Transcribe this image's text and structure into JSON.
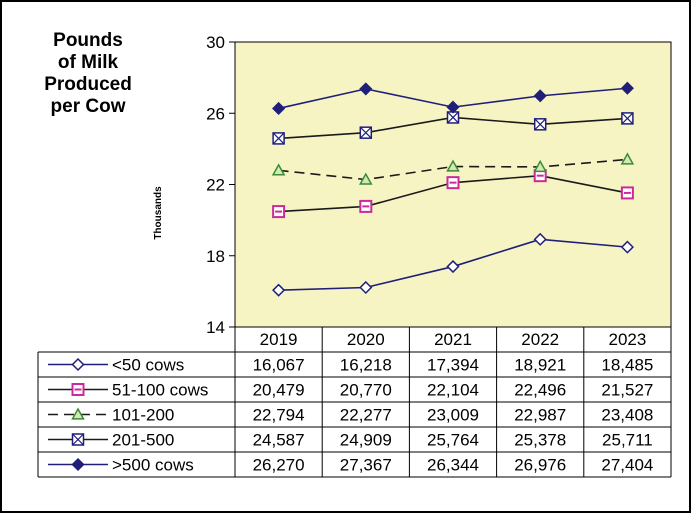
{
  "chart_data": {
    "type": "line",
    "title_lines": [
      "Pounds",
      "of Milk",
      "Produced",
      "per Cow"
    ],
    "ylabel": "Thousands",
    "ylim": [
      14,
      30
    ],
    "yticks": [
      14,
      18,
      22,
      26,
      30
    ],
    "categories": [
      "2019",
      "2020",
      "2021",
      "2022",
      "2023"
    ],
    "plot_background": "#f7f4c4",
    "series": [
      {
        "name": "<50 cows",
        "marker": "diamond-open",
        "dash": false,
        "color": "#1f1f7a",
        "marker_color": "#1f1f7a",
        "values": [
          16.067,
          16.218,
          17.394,
          18.921,
          18.485
        ],
        "labels": [
          "16,067",
          "16,218",
          "17,394",
          "18,921",
          "18,485"
        ]
      },
      {
        "name": "51-100 cows",
        "marker": "square-pink",
        "dash": false,
        "color": "#1a1a1a",
        "marker_color": "#cc2a9a",
        "values": [
          20.479,
          20.77,
          22.104,
          22.496,
          21.527
        ],
        "labels": [
          "20,479",
          "20,770",
          "22,104",
          "22,496",
          "21,527"
        ]
      },
      {
        "name": "101-200",
        "marker": "triangle-green",
        "dash": true,
        "color": "#1a1a1a",
        "marker_color": "#3a8a3a",
        "values": [
          22.794,
          22.277,
          23.009,
          22.987,
          23.408
        ],
        "labels": [
          "22,794",
          "22,277",
          "23,009",
          "22,987",
          "23,408"
        ]
      },
      {
        "name": "201-500",
        "marker": "square-x",
        "dash": false,
        "color": "#1a1a1a",
        "marker_color": "#1f1f7a",
        "values": [
          24.587,
          24.909,
          25.764,
          25.378,
          25.711
        ],
        "labels": [
          "24,587",
          "24,909",
          "25,764",
          "25,378",
          "25,711"
        ]
      },
      {
        "name": ">500 cows",
        "marker": "diamond-filled",
        "dash": false,
        "color": "#1f1f7a",
        "marker_color": "#1f1f7a",
        "values": [
          26.27,
          27.367,
          26.344,
          26.976,
          27.404
        ],
        "labels": [
          "26,270",
          "27,367",
          "26,344",
          "26,976",
          "27,404"
        ]
      }
    ]
  }
}
